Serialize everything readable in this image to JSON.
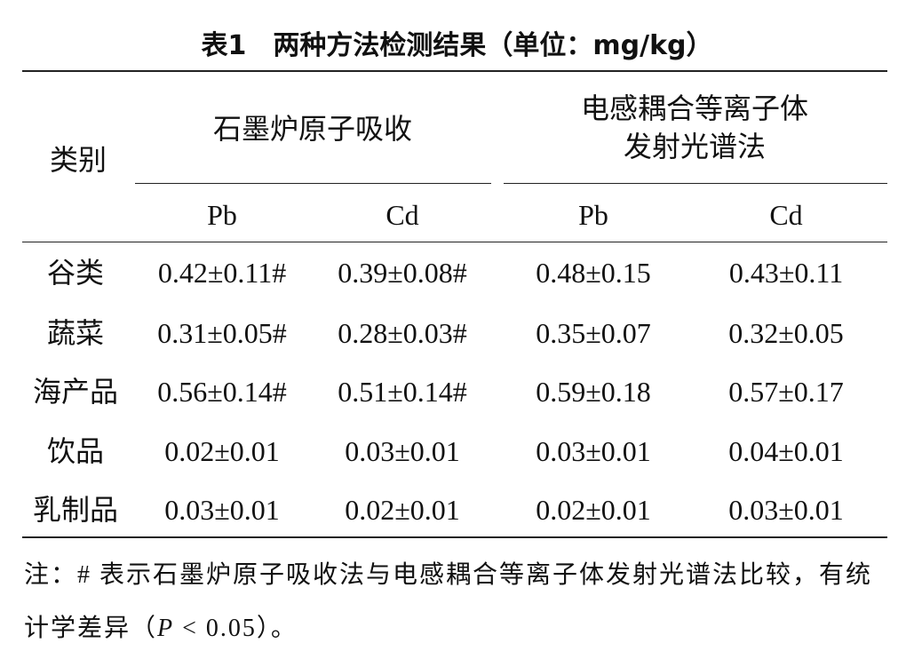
{
  "title": "表1　两种方法检测结果（单位：mg/kg）",
  "table": {
    "row_header": "类别",
    "groups": [
      "石墨炉原子吸收",
      "电感耦合等离子体发射光谱法"
    ],
    "subheaders": [
      "Pb",
      "Cd",
      "Pb",
      "Cd"
    ],
    "rows": [
      [
        "谷类",
        "0.42±0.11#",
        "0.39±0.08#",
        "0.48±0.15",
        "0.43±0.11"
      ],
      [
        "蔬菜",
        "0.31±0.05#",
        "0.28±0.03#",
        "0.35±0.07",
        "0.32±0.05"
      ],
      [
        "海产品",
        "0.56±0.14#",
        "0.51±0.14#",
        "0.59±0.18",
        "0.57±0.17"
      ],
      [
        "饮品",
        "0.02±0.01",
        "0.03±0.01",
        "0.03±0.01",
        "0.04±0.01"
      ],
      [
        "乳制品",
        "0.03±0.01",
        "0.02±0.01",
        "0.02±0.01",
        "0.03±0.01"
      ]
    ]
  },
  "note": {
    "text": "注：# 表示石墨炉原子吸收法与电感耦合等离子体发射光谱法比较，有统计学差异（",
    "p": "P",
    "tail": " < 0.05）。"
  }
}
